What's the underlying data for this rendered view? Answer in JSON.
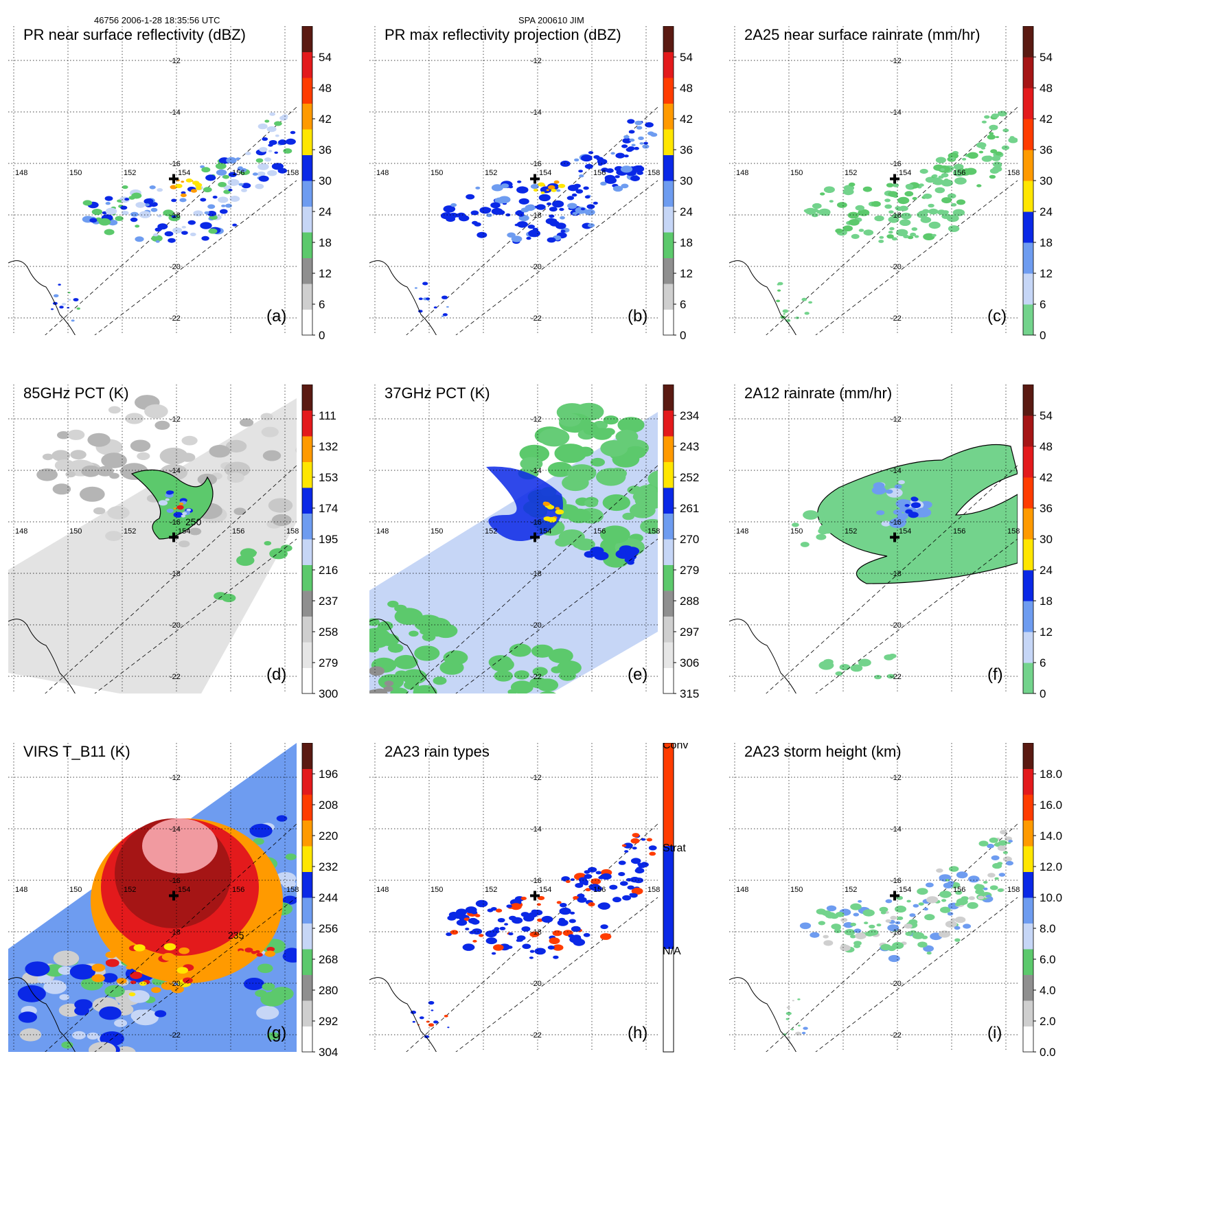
{
  "header": {
    "left": "46756 2006-1-28 18:35:56 UTC",
    "center": "SPA 200610 JIM"
  },
  "colors": {
    "white": "#ffffff",
    "lightgray": "#cfcfcf",
    "gray": "#8f8f8f",
    "lightgreen": "#73d38c",
    "green": "#5cc96c",
    "lightblue": "#c6d6f6",
    "skyblue": "#6e9cf0",
    "blue": "#0a28e6",
    "yellow": "#ffe600",
    "orange": "#ff9a00",
    "orangered": "#ff3c00",
    "red": "#e31a1c",
    "darkred": "#a51515",
    "maroon": "#5a1a12",
    "pink": "#f19aa0"
  },
  "chart_data": [
    {
      "id": "a",
      "type": "heatmap",
      "title": "PR near surface reflectivity (dBZ)",
      "panel_label": "(a)",
      "colorbar": {
        "ticks": [
          "54",
          "48",
          "42",
          "36",
          "30",
          "24",
          "18",
          "12",
          "6",
          "0"
        ]
      },
      "lon_labels": [
        "148",
        "150",
        "152",
        "154",
        "156",
        "158"
      ],
      "lat_labels": [
        "-12",
        "-14",
        "-16",
        "-18",
        "-20",
        "-22"
      ],
      "features": [
        "storm center marker near 153.9E, -16.6",
        "narrow PR swath, scattered 18-30 dBZ, 30-42 dBZ band near storm center"
      ]
    },
    {
      "id": "b",
      "type": "heatmap",
      "title": "PR max reflectivity projection (dBZ)",
      "panel_label": "(b)",
      "colorbar": {
        "ticks": [
          "54",
          "48",
          "42",
          "36",
          "30",
          "24",
          "18",
          "12",
          "6",
          "0"
        ]
      },
      "lon_labels": [
        "148",
        "150",
        "152",
        "154",
        "156",
        "158"
      ],
      "lat_labels": [
        "-12",
        "-14",
        "-16",
        "-18",
        "-20",
        "-22"
      ],
      "features": [
        "blue 30-36 dBZ echoes with yellow/orange cores along swath",
        "black contour outlines"
      ]
    },
    {
      "id": "c",
      "type": "heatmap",
      "title": "2A25 near surface rainrate (mm/hr)",
      "panel_label": "(c)",
      "colorbar": {
        "ticks": [
          "54",
          "48",
          "42",
          "36",
          "30",
          "24",
          "18",
          "12",
          "6",
          "0"
        ]
      },
      "lon_labels": [
        "148",
        "150",
        "152",
        "154",
        "156",
        "158"
      ],
      "lat_labels": [
        "-12",
        "-14",
        "-16",
        "-18",
        "-20",
        "-22"
      ],
      "features": [
        "light rain 0-6 mm/hr (green) along swath"
      ]
    },
    {
      "id": "d",
      "type": "heatmap",
      "title": "85GHz PCT (K)",
      "panel_label": "(d)",
      "colorbar": {
        "ticks": [
          "111",
          "132",
          "153",
          "174",
          "195",
          "216",
          "237",
          "258",
          "279",
          "300"
        ]
      },
      "lon_labels": [
        "148",
        "150",
        "152",
        "154",
        "156",
        "158"
      ],
      "lat_labels": [
        "-12",
        "-14",
        "-16",
        "-18",
        "-20",
        "-22"
      ],
      "annotations": [
        "250"
      ],
      "features": [
        "mostly 279-300 K gray background",
        "cold scattering ring around center below 237 K"
      ]
    },
    {
      "id": "e",
      "type": "heatmap",
      "title": "37GHz PCT (K)",
      "panel_label": "(e)",
      "colorbar": {
        "ticks": [
          "234",
          "243",
          "252",
          "261",
          "270",
          "279",
          "288",
          "297",
          "306",
          "315"
        ]
      },
      "lon_labels": [
        "148",
        "150",
        "152",
        "154",
        "156",
        "158"
      ],
      "lat_labels": [
        "-12",
        "-14",
        "-16",
        "-18",
        "-20",
        "-22"
      ],
      "features": [
        "green 279-288 K background",
        "blue band near center with yellow/orange core"
      ]
    },
    {
      "id": "f",
      "type": "heatmap",
      "title": "2A12 rainrate (mm/hr)",
      "panel_label": "(f)",
      "colorbar": {
        "ticks": [
          "54",
          "48",
          "42",
          "36",
          "30",
          "24",
          "18",
          "12",
          "6",
          "0"
        ]
      },
      "lon_labels": [
        "148",
        "150",
        "152",
        "154",
        "156",
        "158"
      ],
      "lat_labels": [
        "-12",
        "-14",
        "-16",
        "-18",
        "-20",
        "-22"
      ],
      "features": [
        "broad light rain region 0-12 mm/hr",
        "blue 18-24 mm/hr cores near 155E -16.5"
      ]
    },
    {
      "id": "g",
      "type": "heatmap",
      "title": "VIRS T_B11 (K)",
      "panel_label": "(g)",
      "colorbar": {
        "ticks": [
          "196",
          "208",
          "220",
          "232",
          "244",
          "256",
          "268",
          "280",
          "292",
          "304"
        ]
      },
      "lon_labels": [
        "148",
        "150",
        "152",
        "154",
        "156",
        "158"
      ],
      "lat_labels": [
        "-12",
        "-14",
        "-16",
        "-18",
        "-20",
        "-22"
      ],
      "annotations": [
        "235"
      ],
      "features": [
        "cold cloud shield below 208 K over center",
        "spiral band 220-244 K"
      ]
    },
    {
      "id": "h",
      "type": "heatmap",
      "title": "2A23 rain types",
      "panel_label": "(h)",
      "colorbar": {
        "categories": [
          "Conv",
          "Strat",
          "N/A"
        ]
      },
      "lon_labels": [
        "148",
        "150",
        "152",
        "154",
        "156",
        "158"
      ],
      "lat_labels": [
        "-12",
        "-14",
        "-16",
        "-18",
        "-20",
        "-22"
      ],
      "features": [
        "mostly stratiform (blue) with scattered convective (orange) pixels"
      ]
    },
    {
      "id": "i",
      "type": "heatmap",
      "title": "2A23 storm height (km)",
      "panel_label": "(i)",
      "colorbar": {
        "ticks": [
          "18.0",
          "16.0",
          "14.0",
          "12.0",
          "10.0",
          "8.0",
          "6.0",
          "4.0",
          "2.0",
          "0.0"
        ]
      },
      "lon_labels": [
        "148",
        "150",
        "152",
        "154",
        "156",
        "158"
      ],
      "lat_labels": [
        "-12",
        "-14",
        "-16",
        "-18",
        "-20",
        "-22"
      ],
      "features": [
        "storm heights mostly 4-8 km, some 8-10 km near center"
      ]
    }
  ]
}
